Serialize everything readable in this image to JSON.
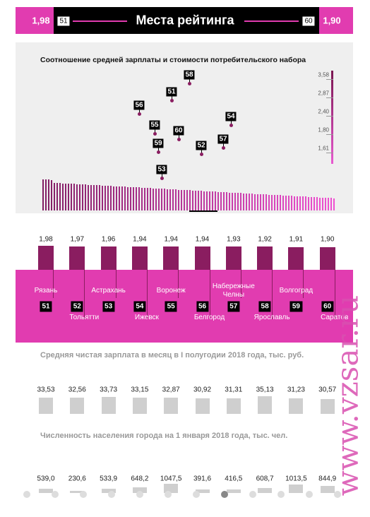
{
  "header": {
    "left_value": "1,98",
    "left_rank": "51",
    "title": "Места рейтинга",
    "right_rank": "60",
    "right_value": "1,90"
  },
  "map": {
    "title": "Соотношение средней зарплаты и стоимости потребительского набора",
    "legend": [
      "3,58",
      "2,87",
      "2,40",
      "1,80",
      "1,61"
    ],
    "pins": [
      "58",
      "51",
      "56",
      "55",
      "60",
      "59",
      "53",
      "52",
      "54",
      "57"
    ]
  },
  "ratio": {
    "values": [
      1.98,
      1.97,
      1.96,
      1.94,
      1.94,
      1.94,
      1.93,
      1.92,
      1.91,
      1.9
    ],
    "value_labels": [
      "1,98",
      "1,97",
      "1,96",
      "1,94",
      "1,94",
      "1,94",
      "1,93",
      "1,92",
      "1,91",
      "1,90"
    ]
  },
  "cities": [
    {
      "rank": "51",
      "name": "Рязань"
    },
    {
      "rank": "52",
      "name": "Тольятти"
    },
    {
      "rank": "53",
      "name": "Астрахань"
    },
    {
      "rank": "54",
      "name": "Ижевск"
    },
    {
      "rank": "55",
      "name": "Воронеж"
    },
    {
      "rank": "56",
      "name": "Белгород"
    },
    {
      "rank": "57",
      "name": "Набережные Челны"
    },
    {
      "rank": "58",
      "name": "Ярославль"
    },
    {
      "rank": "59",
      "name": "Волгоград"
    },
    {
      "rank": "60",
      "name": "Саратов"
    }
  ],
  "salary": {
    "title": "Средняя чистая зарплата в месяц в I полугодии 2018 года, тыс. руб.",
    "values": [
      33.53,
      32.56,
      33.73,
      33.15,
      32.87,
      30.92,
      31.31,
      35.13,
      31.23,
      30.57
    ],
    "value_labels": [
      "33,53",
      "32,56",
      "33,73",
      "33,15",
      "32,87",
      "30,92",
      "31,31",
      "35,13",
      "31,23",
      "30,57"
    ]
  },
  "population": {
    "title": "Численность населения города на 1 января 2018 года, тыс. чел.",
    "values": [
      539.0,
      230.6,
      533.9,
      648.2,
      1047.5,
      391.6,
      416.5,
      608.7,
      1013.5,
      844.9
    ],
    "value_labels": [
      "539,0",
      "230,6",
      "533,9",
      "648,2",
      "1047,5",
      "391,6",
      "416,5",
      "608,7",
      "1013,5",
      "844,9"
    ]
  },
  "watermark": "www.vzsar.ru"
}
